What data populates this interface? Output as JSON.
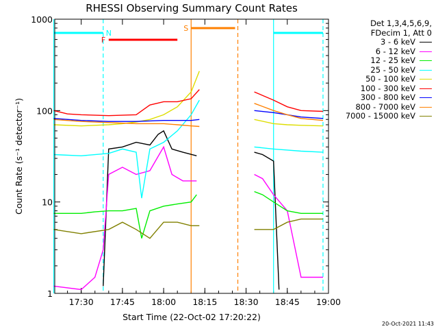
{
  "chart_data": {
    "type": "line",
    "title": "RHESSI Observing Summary Count Rates",
    "xlabel": "Start Time (22-Oct-02 17:20:22)",
    "ylabel": "Count Rate (s⁻¹ detector⁻¹)",
    "ylog": true,
    "ylim": [
      1,
      1000
    ],
    "xlim": [
      "17:20:22",
      "19:00:00"
    ],
    "y_tick_labels": [
      "1",
      "10",
      "100",
      "1000"
    ],
    "x_tick_labels": [
      "17:30",
      "17:45",
      "18:00",
      "18:15",
      "18:30",
      "18:45",
      "19:00"
    ],
    "legend_header": [
      "Det 1,3,4,5,6,9,",
      "FDecim 1, Att 0"
    ],
    "series": [
      {
        "name": "3 - 6 keV",
        "color": "#000000",
        "x": [
          "17:38",
          "17:40",
          "17:45",
          "17:50",
          "17:55",
          "17:58",
          "18:00",
          "18:03",
          "18:07",
          "18:12"
        ],
        "y": [
          1.2,
          38,
          40,
          45,
          42,
          55,
          60,
          38,
          35,
          32
        ],
        "x2": [
          "18:33",
          "18:36",
          "18:40",
          "18:42"
        ],
        "y2": [
          35,
          33,
          28,
          1.1
        ]
      },
      {
        "name": "6 - 12 keV",
        "color": "#ff00ff",
        "x": [
          "17:20",
          "17:30",
          "17:35",
          "17:38",
          "17:40",
          "17:45",
          "17:50",
          "17:55",
          "17:57",
          "18:00",
          "18:03",
          "18:07",
          "18:12"
        ],
        "y": [
          1.2,
          1.1,
          1.5,
          3,
          20,
          24,
          20,
          22,
          28,
          40,
          20,
          17,
          17
        ],
        "x2": [
          "18:33",
          "18:36",
          "18:40",
          "18:45",
          "18:50",
          "18:55",
          "18:58"
        ],
        "y2": [
          20,
          18,
          12,
          8,
          1.5,
          1.5,
          1.5
        ]
      },
      {
        "name": "12 - 25 keV",
        "color": "#00ee00",
        "x": [
          "17:20",
          "17:30",
          "17:35",
          "17:40",
          "17:45",
          "17:50",
          "17:52",
          "17:55",
          "18:00",
          "18:05",
          "18:10",
          "18:12"
        ],
        "y": [
          7.5,
          7.5,
          7.8,
          8,
          8,
          8.5,
          4,
          8,
          9,
          9.5,
          10,
          12
        ],
        "x2": [
          "18:33",
          "18:36",
          "18:40",
          "18:45",
          "18:50",
          "18:58"
        ],
        "y2": [
          13,
          12,
          10,
          8,
          7.5,
          7.5
        ]
      },
      {
        "name": "25 - 50 keV",
        "color": "#00ffff",
        "x": [
          "17:20",
          "17:30",
          "17:40",
          "17:45",
          "17:50",
          "17:52",
          "17:55",
          "18:00",
          "18:05",
          "18:10",
          "18:13"
        ],
        "y": [
          33,
          32,
          34,
          38,
          35,
          11,
          38,
          45,
          60,
          90,
          130
        ],
        "x2": [
          "18:33",
          "18:40",
          "18:45",
          "18:50",
          "18:58"
        ],
        "y2": [
          40,
          38,
          37,
          36,
          35
        ]
      },
      {
        "name": "50 - 100 keV",
        "color": "#dddd00",
        "x": [
          "17:20",
          "17:30",
          "17:40",
          "17:45",
          "17:50",
          "17:55",
          "18:00",
          "18:05",
          "18:10",
          "18:13"
        ],
        "y": [
          70,
          68,
          70,
          72,
          75,
          80,
          90,
          110,
          160,
          270
        ],
        "x2": [
          "18:33",
          "18:40",
          "18:45",
          "18:50",
          "18:58"
        ],
        "y2": [
          80,
          72,
          70,
          69,
          68
        ]
      },
      {
        "name": "100 - 300 keV",
        "color": "#ff0000",
        "x": [
          "17:20",
          "17:25",
          "17:30",
          "17:40",
          "17:50",
          "17:55",
          "18:00",
          "18:05",
          "18:10",
          "18:13"
        ],
        "y": [
          100,
          92,
          90,
          88,
          90,
          115,
          125,
          125,
          135,
          170
        ],
        "x2": [
          "18:33",
          "18:40",
          "18:45",
          "18:50",
          "18:58"
        ],
        "y2": [
          160,
          130,
          110,
          100,
          98
        ]
      },
      {
        "name": "300 - 800 keV",
        "color": "#0000ff",
        "x": [
          "17:20",
          "17:30",
          "17:40",
          "17:50",
          "18:00",
          "18:05",
          "18:10",
          "18:13"
        ],
        "y": [
          82,
          78,
          76,
          76,
          78,
          78,
          78,
          80
        ],
        "x2": [
          "18:33",
          "18:40",
          "18:45",
          "18:50",
          "18:58"
        ],
        "y2": [
          100,
          95,
          90,
          85,
          82
        ]
      },
      {
        "name": "800 - 7000 keV",
        "color": "#ff8000",
        "x": [
          "17:20",
          "17:30",
          "17:40",
          "17:50",
          "18:00",
          "18:05",
          "18:10",
          "18:13"
        ],
        "y": [
          80,
          76,
          74,
          72,
          72,
          70,
          68,
          67
        ],
        "x2": [
          "18:33",
          "18:40",
          "18:45",
          "18:50",
          "18:58"
        ],
        "y2": [
          120,
          100,
          90,
          82,
          78
        ]
      },
      {
        "name": "7000 - 15000 keV",
        "color": "#808000",
        "x": [
          "17:20",
          "17:30",
          "17:40",
          "17:45",
          "17:50",
          "17:55",
          "18:00",
          "18:05",
          "18:10",
          "18:13"
        ],
        "y": [
          5,
          4.5,
          5,
          6,
          5,
          4,
          6,
          6,
          5.5,
          5.5
        ],
        "x2": [
          "18:33",
          "18:40",
          "18:45",
          "18:50",
          "18:58"
        ],
        "y2": [
          5,
          5,
          6,
          6.5,
          6.5
        ]
      }
    ],
    "flag_bars": [
      {
        "label": "N",
        "color": "#00ffff",
        "segments": [
          [
            "17:20",
            "17:38"
          ],
          [
            "18:40",
            "18:58"
          ]
        ]
      },
      {
        "label": "F",
        "color": "#ff0000",
        "segments": [
          [
            "17:40",
            "18:05"
          ]
        ]
      },
      {
        "label": "S",
        "color": "#ff8000",
        "segments": [
          [
            "18:10",
            "18:26"
          ]
        ]
      }
    ],
    "vertical_lines": [
      {
        "color": "#00ffff",
        "x": "17:20",
        "style": "solid"
      },
      {
        "color": "#00ffff",
        "x": "17:38",
        "style": "dashed"
      },
      {
        "color": "#ff8000",
        "x": "18:10",
        "style": "solid"
      },
      {
        "color": "#ff8000",
        "x": "18:27",
        "style": "dashed"
      },
      {
        "color": "#00ffff",
        "x": "18:40",
        "style": "solid"
      },
      {
        "color": "#00ffff",
        "x": "18:58",
        "style": "dashed"
      }
    ],
    "timestamp": "20-Oct-2021 11:43"
  }
}
